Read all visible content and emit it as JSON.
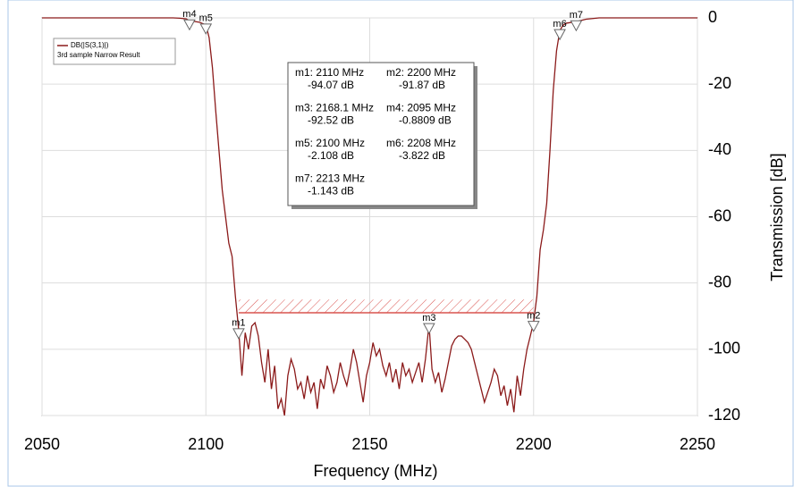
{
  "chart_data": {
    "type": "line",
    "x_label": "Frequency (MHz)",
    "y_label": "Transmission [dB]",
    "xlim": [
      2050,
      2250
    ],
    "xticks": [
      2050,
      2100,
      2150,
      2200,
      2250
    ],
    "ylim": [
      -120,
      0
    ],
    "yticks": [
      0,
      -20,
      -40,
      -60,
      -80,
      -100,
      -120
    ],
    "grid": true,
    "legend": "top-left",
    "legend_subtitle": "3rd sample Narrow Result",
    "x": [
      2050,
      2060,
      2070,
      2080,
      2090,
      2092,
      2094,
      2095,
      2096,
      2098,
      2100,
      2101,
      2102,
      2103,
      2104,
      2105,
      2106,
      2107,
      2108,
      2109,
      2110,
      2111,
      2112,
      2113,
      2114,
      2115,
      2116,
      2117,
      2118,
      2119,
      2120,
      2121,
      2122,
      2123,
      2124,
      2125,
      2126,
      2127,
      2128,
      2129,
      2130,
      2131,
      2132,
      2133,
      2134,
      2135,
      2136,
      2137,
      2138,
      2139,
      2140,
      2141,
      2142,
      2143,
      2144,
      2145,
      2146,
      2147,
      2148,
      2149,
      2150,
      2151,
      2152,
      2153,
      2154,
      2155,
      2156,
      2157,
      2158,
      2159,
      2160,
      2161,
      2162,
      2163,
      2164,
      2165,
      2166,
      2167,
      2168.1,
      2169,
      2170,
      2171,
      2172,
      2173,
      2174,
      2175,
      2176,
      2177,
      2178,
      2179,
      2180,
      2181,
      2182,
      2183,
      2184,
      2185,
      2186,
      2187,
      2188,
      2189,
      2190,
      2191,
      2192,
      2193,
      2194,
      2195,
      2196,
      2197,
      2198,
      2199,
      2200,
      2201,
      2202,
      2203,
      2204,
      2205,
      2206,
      2207,
      2208,
      2209,
      2210,
      2213,
      2216,
      2220,
      2230,
      2240,
      2250
    ],
    "series": [
      {
        "name": "DB(|S(3,1)|)",
        "color": "#8b1a1a",
        "values": [
          0,
          0,
          0,
          0,
          0,
          -0.1,
          -0.3,
          -0.8809,
          -1.0,
          -1.3,
          -2.108,
          -6,
          -15,
          -28,
          -40,
          -52,
          -60,
          -68,
          -72,
          -84,
          -94.07,
          -108,
          -95,
          -100,
          -93,
          -92,
          -96,
          -104,
          -110,
          -100,
          -112,
          -105,
          -118,
          -115,
          -120,
          -108,
          -103,
          -106,
          -112,
          -110,
          -115,
          -108,
          -113,
          -110,
          -118,
          -109,
          -112,
          -105,
          -108,
          -113,
          -110,
          -104,
          -108,
          -111,
          -106,
          -100,
          -104,
          -110,
          -116,
          -108,
          -104,
          -98,
          -102,
          -100,
          -105,
          -108,
          -104,
          -110,
          -106,
          -112,
          -104,
          -108,
          -106,
          -110,
          -107,
          -104,
          -110,
          -103,
          -92.52,
          -106,
          -110,
          -107,
          -113,
          -109,
          -104,
          -99,
          -97,
          -96,
          -96,
          -97,
          -98,
          -100,
          -104,
          -108,
          -112,
          -116,
          -113,
          -110,
          -106,
          -108,
          -114,
          -111,
          -117,
          -112,
          -119,
          -108,
          -114,
          -106,
          -100,
          -96,
          -91.87,
          -84,
          -70,
          -64,
          -56,
          -40,
          -22,
          -10,
          -3.822,
          -2.2,
          -1.6,
          -1.143,
          -0.4,
          0,
          0,
          0,
          0
        ]
      }
    ],
    "limit": {
      "x": [
        2110,
        2200
      ],
      "y": [
        -89,
        -85
      ],
      "color": "#d9534f"
    },
    "markers": [
      {
        "name": "m1",
        "x": 2110,
        "y": -94.07,
        "label": "m1: 2110 MHz",
        "value_label": "-94.07 dB"
      },
      {
        "name": "m2",
        "x": 2200,
        "y": -91.87,
        "label": "m2: 2200 MHz",
        "value_label": "-91.87 dB"
      },
      {
        "name": "m3",
        "x": 2168.1,
        "y": -92.52,
        "label": "m3: 2168.1 MHz",
        "value_label": "-92.52 dB"
      },
      {
        "name": "m4",
        "x": 2095,
        "y": -0.8809,
        "label": "m4: 2095 MHz",
        "value_label": "-0.8809 dB"
      },
      {
        "name": "m5",
        "x": 2100,
        "y": -2.108,
        "label": "m5: 2100 MHz",
        "value_label": "-2.108 dB"
      },
      {
        "name": "m6",
        "x": 2208,
        "y": -3.822,
        "label": "m6: 2208 MHz",
        "value_label": "-3.822 dB"
      },
      {
        "name": "m7",
        "x": 2213,
        "y": -1.143,
        "label": "m7: 2213 MHz",
        "value_label": "-1.143 dB"
      }
    ]
  }
}
